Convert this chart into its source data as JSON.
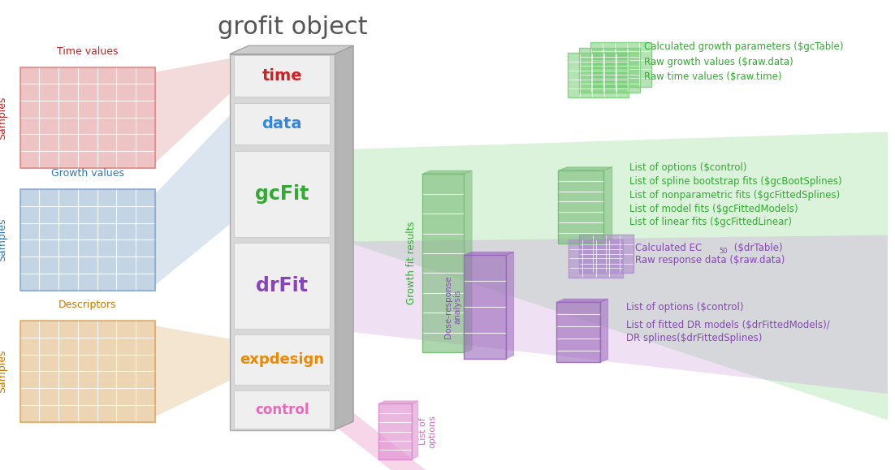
{
  "bg_color": "#ffffff",
  "title": "grofit object",
  "title_color": "#555555",
  "title_fontsize": 22,
  "drawer_labels": [
    "time",
    "data",
    "gcFit",
    "drFit",
    "expdesign",
    "control"
  ],
  "drawer_colors": [
    "#cc2222",
    "#3388dd",
    "#33aa33",
    "#8844bb",
    "#ee8800",
    "#ee66bb"
  ],
  "drawer_font_sizes": [
    14,
    14,
    17,
    17,
    13,
    12
  ],
  "green_color": "#33aa33",
  "purple_color": "#8844bb",
  "pink_color": "#dd66bb",
  "red_table_color": "#dd8888",
  "blue_table_color": "#88aacc",
  "orange_table_color": "#ddaa66",
  "green_fan_color": "#99dd99",
  "purple_fan_color": "#cc99dd",
  "pink_fan_color": "#ee99cc",
  "green_texts_top": [
    "Calculated growth parameters ($gcTable)",
    "Raw growth values ($raw.data)",
    "Raw time values ($raw.time)"
  ],
  "green_texts_bottom": [
    "List of options ($control)",
    "List of spline bootstrap fits ($gcBootSplines)",
    "List of nonparametric fits ($gcFittedSplines)",
    "List of model fits ($gcFittedModels)",
    "List of linear fits ($gcFittedLinear)"
  ],
  "purple_texts_top": [
    "Raw response data ($raw.data)"
  ],
  "purple_texts_bottom": [
    "List of options ($control)",
    "List of fitted DR models ($drFittedModels)/",
    "DR splines($drFittedSplines)"
  ]
}
